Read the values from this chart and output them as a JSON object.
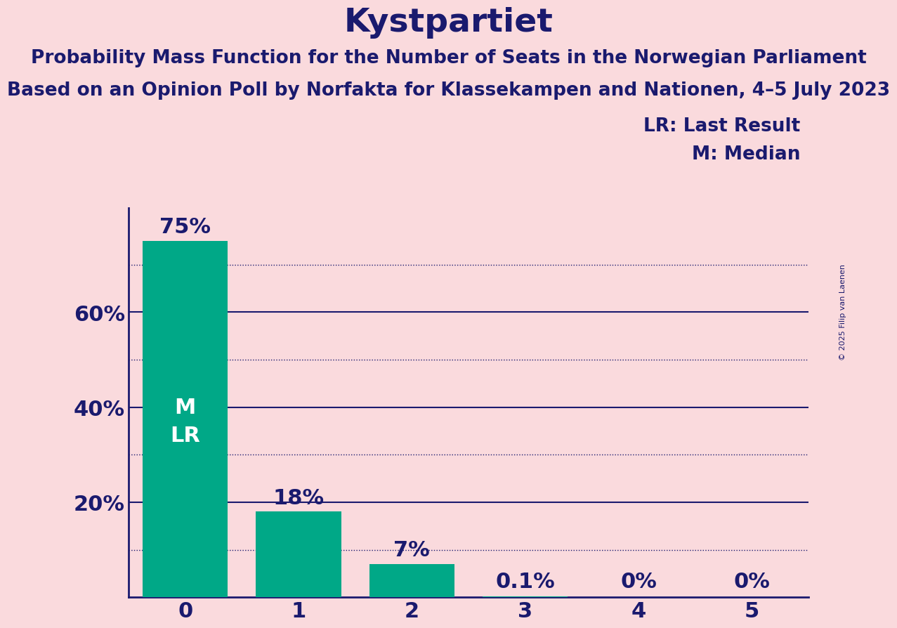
{
  "title": "Kystpartiet",
  "subtitle1": "Probability Mass Function for the Number of Seats in the Norwegian Parliament",
  "subtitle2": "Based on an Opinion Poll by Norfakta for Klassekampen and Nationen, 4–5 July 2023",
  "copyright": "© 2025 Filip van Laenen",
  "categories": [
    0,
    1,
    2,
    3,
    4,
    5
  ],
  "values": [
    0.75,
    0.18,
    0.07,
    0.001,
    0.0,
    0.0
  ],
  "bar_labels": [
    "75%",
    "18%",
    "7%",
    "0.1%",
    "0%",
    "0%"
  ],
  "bar_color": "#00a887",
  "background_color": "#fadadd",
  "title_color": "#1a1a6e",
  "title_fontsize": 34,
  "subtitle_fontsize": 19,
  "axis_label_fontsize": 22,
  "bar_label_fontsize": 22,
  "ytick_labels": [
    "20%",
    "40%",
    "60%"
  ],
  "ytick_values": [
    0.2,
    0.4,
    0.6
  ],
  "ylim": [
    0,
    0.82
  ],
  "legend_lr": "LR: Last Result",
  "legend_m": "M: Median",
  "bar_annotation": "M\nLR",
  "bar_annotation_fontsize": 22,
  "solid_gridline_color": "#1a1a6e",
  "dotted_gridline_color": "#1a1a6e",
  "solid_gridline_values": [
    0.2,
    0.4,
    0.6
  ],
  "dotted_gridline_values": [
    0.1,
    0.3,
    0.5,
    0.7
  ],
  "spine_color": "#1a1a6e"
}
